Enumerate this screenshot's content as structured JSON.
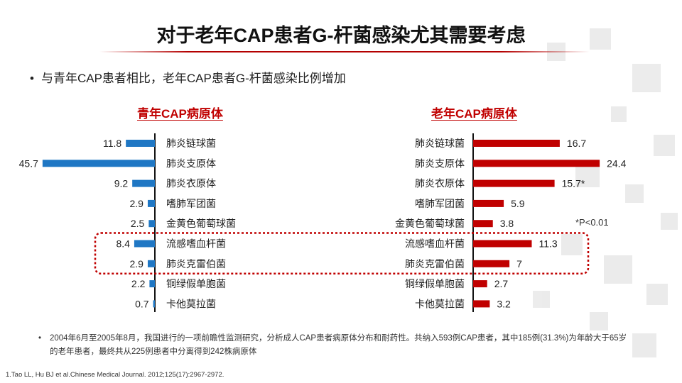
{
  "title": "对于老年CAP患者G-杆菌感染尤其需要考虑",
  "bullet": "与青年CAP患者相比，老年CAP患者G-杆菌感染比例增加",
  "footnote": "2004年6月至2005年8月，我国进行的一项前瞻性监测研究，分析成人CAP患者病原体分布和耐药性。共纳入593例CAP患者，其中185例(31.3%)为年龄大于65岁的老年患者，最终共从225例患者中分离得到242株病原体",
  "reference": "1.Tao LL, Hu BJ et al.Chinese Medical Journal. 2012;125(17):2967-2972.",
  "significance": "*P<0.01",
  "colors": {
    "young_bar": "#1f77c4",
    "old_bar": "#c00000",
    "highlight": "#c00000"
  },
  "chart_data": [
    {
      "type": "bar",
      "orientation": "horizontal",
      "title": "青年CAP病原体",
      "categories": [
        "肺炎链球菌",
        "肺炎支原体",
        "肺炎衣原体",
        "嗜肺军团菌",
        "金黄色葡萄球菌",
        "流感嗜血杆菌",
        "肺炎克雷伯菌",
        "铜绿假单胞菌",
        "卡他莫拉菌"
      ],
      "values": [
        11.8,
        45.7,
        9.2,
        2.9,
        2.5,
        8.4,
        2.9,
        2.2,
        0.7
      ],
      "value_labels": [
        "11.8",
        "45.7",
        "9.2",
        "2.9",
        "2.5",
        "8.4",
        "2.9",
        "2.2",
        "0.7"
      ],
      "direction": "leftward",
      "highlighted": [
        "流感嗜血杆菌",
        "肺炎克雷伯菌"
      ]
    },
    {
      "type": "bar",
      "orientation": "horizontal",
      "title": "老年CAP病原体",
      "categories": [
        "肺炎链球菌",
        "肺炎支原体",
        "肺炎衣原体",
        "嗜肺军团菌",
        "金黄色葡萄球菌",
        "流感嗜血杆菌",
        "肺炎克雷伯菌",
        "铜绿假单胞菌",
        "卡他莫拉菌"
      ],
      "values": [
        16.7,
        24.4,
        15.7,
        5.9,
        3.8,
        11.3,
        7,
        2.7,
        3.2
      ],
      "value_labels": [
        "16.7",
        "24.4",
        "15.7*",
        "5.9",
        "3.8",
        "11.3",
        "7",
        "2.7",
        "3.2"
      ],
      "direction": "rightward",
      "highlighted": [
        "流感嗜血杆菌",
        "肺炎克雷伯菌"
      ]
    }
  ]
}
